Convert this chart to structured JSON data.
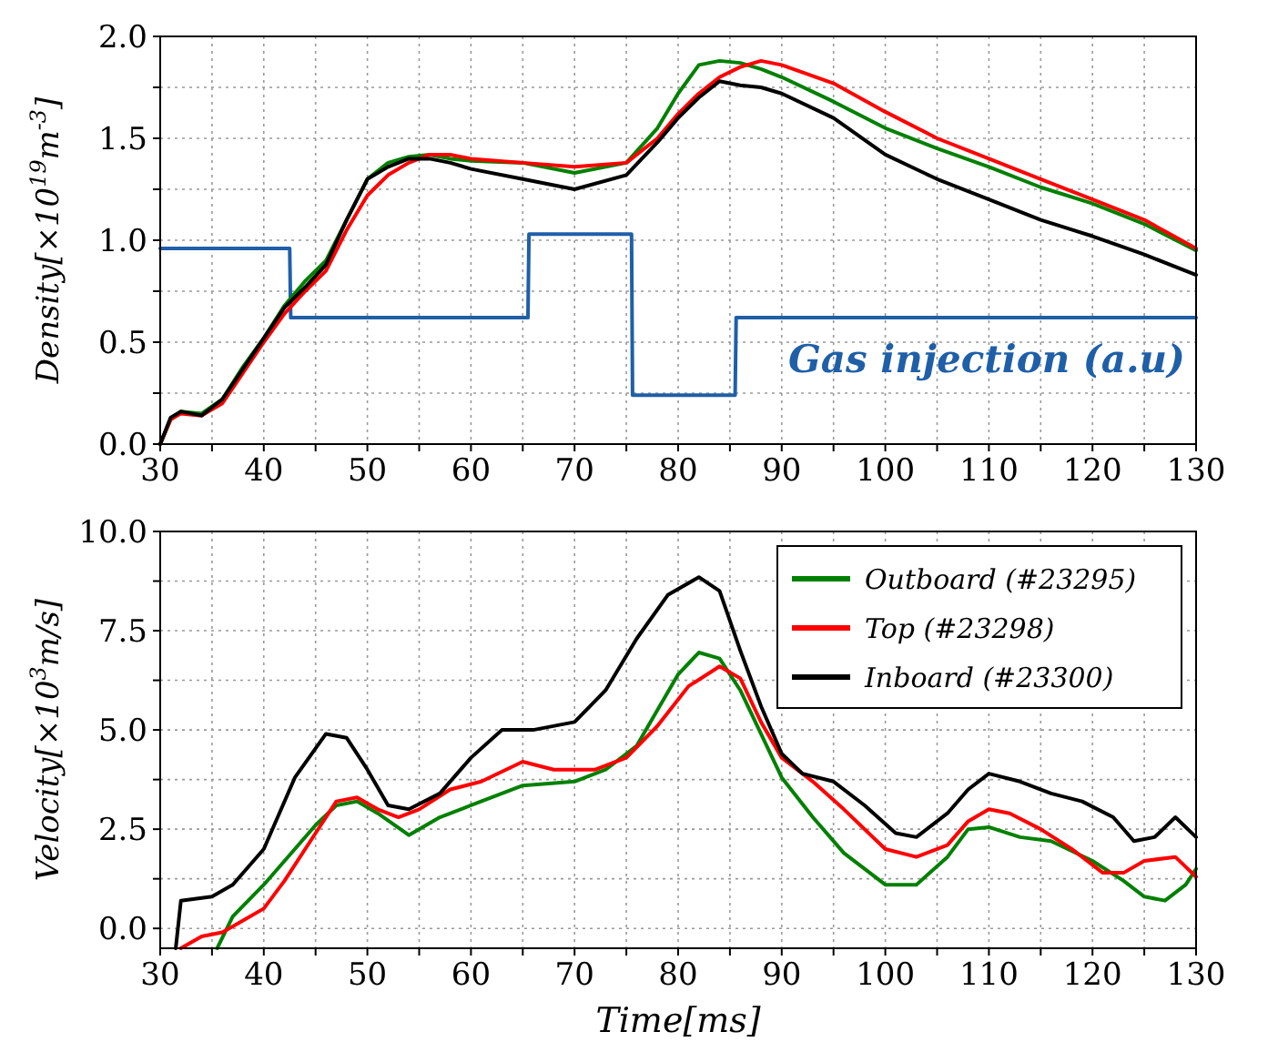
{
  "chart_data": [
    {
      "type": "line",
      "ylabel": "Density[×10$^{19}$m$^{-3}$]",
      "xlim": [
        30,
        130
      ],
      "ylim": [
        0,
        2
      ],
      "grid": true,
      "legend": false,
      "xticks": [
        30,
        {
          "value": 35,
          "label": null
        },
        40,
        {
          "value": 45,
          "label": null
        },
        50,
        {
          "value": 55,
          "label": null
        },
        60,
        {
          "value": 65,
          "label": null
        },
        70,
        {
          "value": 75,
          "label": null
        },
        80,
        {
          "value": 85,
          "label": null
        },
        90,
        {
          "value": 95,
          "label": null
        },
        100,
        {
          "value": 105,
          "label": null
        },
        110,
        {
          "value": 115,
          "label": null
        },
        120,
        {
          "value": 125,
          "label": null
        },
        130
      ],
      "yticks": [
        {
          "value": 0,
          "label": "0.0"
        },
        {
          "value": 0.25,
          "label": null
        },
        0.5,
        {
          "value": 0.75,
          "label": null
        },
        {
          "value": 1,
          "label": "1.0"
        },
        {
          "value": 1.25,
          "label": null
        },
        1.5,
        {
          "value": 1.75,
          "label": null
        },
        {
          "value": 2,
          "label": "2.0"
        }
      ],
      "series": [
        {
          "color": "#1f5fa8",
          "name": "Gas injection (a.u)",
          "x": [
            30,
            42.5,
            42.6,
            65.5,
            65.6,
            75.5,
            75.6,
            85.5,
            85.6,
            130
          ],
          "values": [
            0.96,
            0.96,
            0.62,
            0.62,
            1.03,
            1.03,
            0.24,
            0.24,
            0.62,
            0.62
          ]
        },
        {
          "color": "#008000",
          "x": [
            30,
            31,
            32,
            34,
            36,
            38,
            40,
            42,
            44,
            46,
            48,
            50,
            52,
            54,
            56,
            58,
            60,
            65,
            70,
            75,
            78,
            80,
            82,
            84,
            86,
            88,
            90,
            95,
            100,
            105,
            110,
            115,
            120,
            125,
            130
          ],
          "values": [
            0,
            0.12,
            0.16,
            0.15,
            0.22,
            0.38,
            0.52,
            0.68,
            0.8,
            0.9,
            1.1,
            1.3,
            1.38,
            1.41,
            1.42,
            1.4,
            1.39,
            1.38,
            1.33,
            1.38,
            1.55,
            1.72,
            1.86,
            1.88,
            1.87,
            1.84,
            1.8,
            1.68,
            1.55,
            1.45,
            1.36,
            1.26,
            1.18,
            1.08,
            0.95
          ]
        },
        {
          "color": "#ff0000",
          "x": [
            30,
            31,
            32,
            34,
            36,
            38,
            40,
            42,
            44,
            46,
            48,
            50,
            52,
            54,
            56,
            58,
            60,
            65,
            70,
            75,
            78,
            80,
            82,
            84,
            86,
            88,
            90,
            95,
            100,
            105,
            110,
            115,
            120,
            125,
            130
          ],
          "values": [
            0,
            0.12,
            0.15,
            0.14,
            0.2,
            0.35,
            0.5,
            0.64,
            0.75,
            0.85,
            1.05,
            1.22,
            1.32,
            1.38,
            1.42,
            1.42,
            1.4,
            1.38,
            1.36,
            1.38,
            1.5,
            1.62,
            1.72,
            1.8,
            1.85,
            1.88,
            1.86,
            1.77,
            1.63,
            1.5,
            1.4,
            1.3,
            1.2,
            1.1,
            0.96
          ]
        },
        {
          "color": "#000000",
          "x": [
            30,
            31,
            32,
            34,
            36,
            38,
            40,
            42,
            44,
            46,
            48,
            50,
            52,
            54,
            56,
            58,
            60,
            65,
            70,
            75,
            78,
            80,
            82,
            84,
            86,
            88,
            90,
            95,
            100,
            105,
            110,
            115,
            120,
            125,
            130
          ],
          "values": [
            0,
            0.13,
            0.16,
            0.14,
            0.22,
            0.37,
            0.52,
            0.67,
            0.77,
            0.88,
            1.1,
            1.3,
            1.36,
            1.4,
            1.4,
            1.38,
            1.35,
            1.3,
            1.25,
            1.32,
            1.48,
            1.6,
            1.7,
            1.78,
            1.76,
            1.75,
            1.72,
            1.6,
            1.42,
            1.3,
            1.2,
            1.1,
            1.02,
            0.93,
            0.83
          ]
        }
      ]
    },
    {
      "type": "line",
      "xlabel": "Time[ms]",
      "ylabel": "Velocity[×10$^{3}$m/s]",
      "xlim": [
        30,
        130
      ],
      "ylim": [
        -0.5,
        10
      ],
      "grid": true,
      "legend": "top right",
      "xticks": [
        30,
        {
          "value": 35,
          "label": null
        },
        40,
        {
          "value": 45,
          "label": null
        },
        50,
        {
          "value": 55,
          "label": null
        },
        60,
        {
          "value": 65,
          "label": null
        },
        70,
        {
          "value": 75,
          "label": null
        },
        80,
        {
          "value": 85,
          "label": null
        },
        90,
        {
          "value": 95,
          "label": null
        },
        100,
        {
          "value": 105,
          "label": null
        },
        110,
        {
          "value": 115,
          "label": null
        },
        120,
        {
          "value": 125,
          "label": null
        },
        130
      ],
      "yticks": [
        {
          "value": 0,
          "label": "0.0"
        },
        {
          "value": 1.25,
          "label": null
        },
        2.5,
        {
          "value": 3.75,
          "label": null
        },
        {
          "value": 5,
          "label": "5.0"
        },
        {
          "value": 6.25,
          "label": null
        },
        7.5,
        {
          "value": 8.75,
          "label": null
        },
        {
          "value": 10,
          "label": "10.0"
        }
      ],
      "series": [
        {
          "name": "Outboard (#23295)",
          "color": "#008000",
          "x": [
            35.5,
            37,
            40,
            45,
            47,
            49,
            51,
            54,
            57,
            60,
            65,
            70,
            73,
            76,
            78,
            80,
            82,
            84,
            86,
            88,
            90,
            93,
            96,
            100,
            103,
            106,
            108,
            110,
            113,
            116,
            120,
            123,
            125,
            127,
            129,
            130
          ],
          "values": [
            -0.5,
            0.3,
            1.1,
            2.6,
            3.1,
            3.2,
            2.9,
            2.35,
            2.8,
            3.1,
            3.6,
            3.7,
            4.0,
            4.6,
            5.5,
            6.4,
            6.95,
            6.8,
            6.0,
            4.9,
            3.8,
            2.8,
            1.9,
            1.1,
            1.1,
            1.8,
            2.5,
            2.55,
            2.3,
            2.2,
            1.7,
            1.2,
            0.8,
            0.7,
            1.1,
            1.5
          ]
        },
        {
          "name": "Top (#23298)",
          "color": "#ff0000",
          "x": [
            32,
            34,
            36,
            38,
            40,
            42,
            45,
            47,
            49,
            51,
            53,
            55,
            58,
            61,
            65,
            68,
            72,
            75,
            78,
            81,
            84,
            86,
            88,
            90,
            93,
            96,
            100,
            103,
            106,
            108,
            110,
            112,
            115,
            118,
            121,
            123,
            125,
            128,
            130
          ],
          "values": [
            -0.5,
            -0.2,
            -0.1,
            0.2,
            0.5,
            1.2,
            2.4,
            3.2,
            3.3,
            3.0,
            2.8,
            3.0,
            3.5,
            3.7,
            4.2,
            4.0,
            4.0,
            4.3,
            5.1,
            6.1,
            6.6,
            6.3,
            5.2,
            4.3,
            3.7,
            3.0,
            2.0,
            1.8,
            2.1,
            2.7,
            3.0,
            2.9,
            2.5,
            2.0,
            1.4,
            1.4,
            1.7,
            1.8,
            1.3
          ]
        },
        {
          "name": "Inboard (#23300)",
          "color": "#000000",
          "x": [
            31.5,
            32,
            35,
            37,
            40,
            43,
            46,
            48,
            50,
            52,
            54,
            57,
            60,
            63,
            66,
            70,
            73,
            76,
            79,
            82,
            84,
            86,
            88,
            90,
            92,
            95,
            98,
            101,
            103,
            106,
            108,
            110,
            113,
            116,
            119,
            122,
            124,
            126,
            128,
            130
          ],
          "values": [
            -0.5,
            0.7,
            0.8,
            1.1,
            2.0,
            3.8,
            4.9,
            4.8,
            4.0,
            3.1,
            3.0,
            3.4,
            4.3,
            5.0,
            5.0,
            5.2,
            6.0,
            7.3,
            8.4,
            8.85,
            8.5,
            7.0,
            5.6,
            4.4,
            3.9,
            3.7,
            3.1,
            2.4,
            2.3,
            2.9,
            3.5,
            3.9,
            3.7,
            3.4,
            3.2,
            2.8,
            2.2,
            2.3,
            2.8,
            2.3
          ]
        }
      ]
    }
  ]
}
